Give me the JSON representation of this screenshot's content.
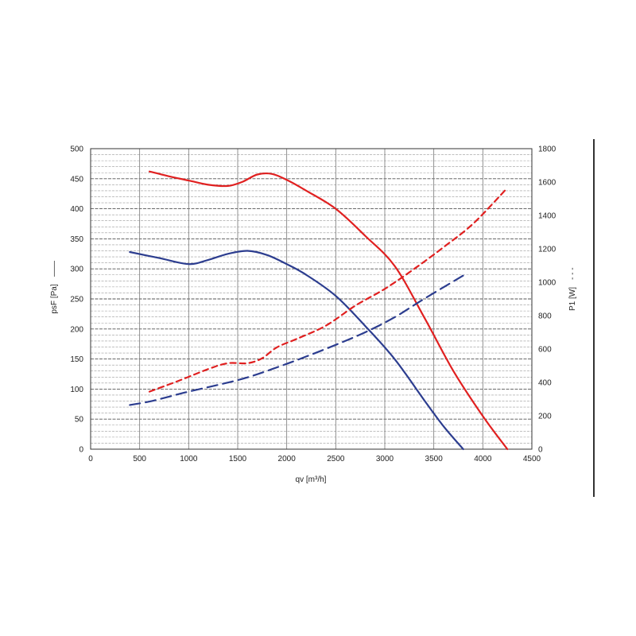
{
  "chart_data": {
    "type": "line",
    "title": "",
    "xlabel": "qv [m³/h]",
    "ylabel": "psF [Pa]",
    "ylabel_marker": "——",
    "y2label": "P1 [W]",
    "y2label_marker": "- - -",
    "xlim": [
      0,
      4500
    ],
    "ylim": [
      0,
      500
    ],
    "y2lim": [
      0,
      1800
    ],
    "x_ticks": [
      "0",
      "500",
      "1000",
      "1500",
      "2000",
      "2500",
      "3000",
      "3500",
      "4000",
      "4500"
    ],
    "y_ticks": [
      "0",
      "50",
      "100",
      "150",
      "200",
      "250",
      "300",
      "350",
      "400",
      "450",
      "500"
    ],
    "y2_ticks": [
      "0",
      "200",
      "400",
      "600",
      "800",
      "1000",
      "1200",
      "1400",
      "1600",
      "1800"
    ],
    "grid": true,
    "series": [
      {
        "axis": "left",
        "style": "solid",
        "color": "#e02020",
        "x": [
          600,
          800,
          1000,
          1200,
          1400,
          1550,
          1700,
          1850,
          2000,
          2200,
          2500,
          2800,
          3100,
          3400,
          3700,
          4000,
          4250
        ],
        "y": [
          462,
          454,
          447,
          440,
          438,
          445,
          457,
          458,
          448,
          430,
          400,
          355,
          305,
          220,
          130,
          55,
          0
        ]
      },
      {
        "axis": "left",
        "style": "solid",
        "color": "#2c3d8f",
        "x": [
          400,
          700,
          1000,
          1200,
          1400,
          1600,
          1800,
          2000,
          2200,
          2500,
          2800,
          3100,
          3400,
          3600,
          3800
        ],
        "y": [
          328,
          318,
          308,
          315,
          325,
          330,
          323,
          308,
          290,
          255,
          205,
          150,
          82,
          38,
          0
        ]
      },
      {
        "axis": "right",
        "style": "dashed",
        "color": "#e02020",
        "x": [
          600,
          900,
          1200,
          1400,
          1600,
          1750,
          1900,
          2100,
          2400,
          2700,
          3000,
          3300,
          3600,
          3900,
          4250
        ],
        "y": [
          345,
          410,
          480,
          515,
          515,
          545,
          610,
          660,
          740,
          860,
          960,
          1080,
          1210,
          1350,
          1565
        ]
      },
      {
        "axis": "right",
        "style": "dashed",
        "color": "#2c3d8f",
        "x": [
          400,
          600,
          800,
          1000,
          1300,
          1600,
          1900,
          2200,
          2500,
          2800,
          3100,
          3400,
          3800
        ],
        "y": [
          265,
          285,
          315,
          345,
          385,
          430,
          490,
          555,
          625,
          700,
          790,
          900,
          1040
        ]
      }
    ]
  }
}
